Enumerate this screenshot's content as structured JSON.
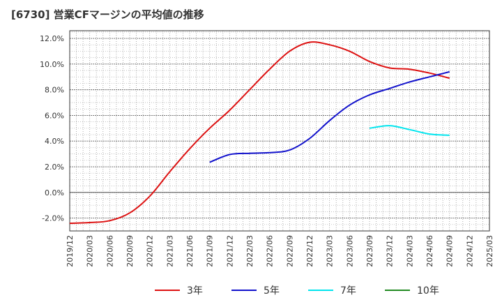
{
  "title": "[6730]  営業CFマージンの平均値の推移",
  "chart_data": {
    "type": "line",
    "title": "[6730]  営業CFマージンの平均値の推移",
    "xlabel": "",
    "ylabel": "",
    "x_ticks": [
      "2019/12",
      "2020/03",
      "2020/06",
      "2020/09",
      "2020/12",
      "2021/03",
      "2021/06",
      "2021/09",
      "2021/12",
      "2022/03",
      "2022/06",
      "2022/09",
      "2022/12",
      "2023/03",
      "2023/06",
      "2023/09",
      "2023/12",
      "2024/03",
      "2024/06",
      "2024/09",
      "2024/12",
      "2025/03"
    ],
    "y_ticks": [
      12,
      10,
      8,
      6,
      4,
      2,
      0,
      -2
    ],
    "y_tick_labels": [
      "12.0%",
      "10.0%",
      "8.0%",
      "6.0%",
      "4.0%",
      "2.0%",
      "0.0%",
      "-2.0%"
    ],
    "ylim": [
      -3.0,
      12.6
    ],
    "grid": true,
    "legend_position": "bottom",
    "series": [
      {
        "name": "3年",
        "color": "#dd1111",
        "points": [
          [
            "2019/12",
            -2.4
          ],
          [
            "2020/03",
            -2.35
          ],
          [
            "2020/06",
            -2.2
          ],
          [
            "2020/09",
            -1.6
          ],
          [
            "2020/12",
            -0.3
          ],
          [
            "2021/03",
            1.6
          ],
          [
            "2021/06",
            3.4
          ],
          [
            "2021/09",
            5.0
          ],
          [
            "2021/12",
            6.4
          ],
          [
            "2022/03",
            8.0
          ],
          [
            "2022/06",
            9.6
          ],
          [
            "2022/09",
            11.0
          ],
          [
            "2022/12",
            11.7
          ],
          [
            "2023/03",
            11.5
          ],
          [
            "2023/06",
            11.0
          ],
          [
            "2023/09",
            10.2
          ],
          [
            "2023/12",
            9.7
          ],
          [
            "2024/03",
            9.6
          ],
          [
            "2024/06",
            9.3
          ],
          [
            "2024/09",
            8.9
          ]
        ]
      },
      {
        "name": "5年",
        "color": "#1111cc",
        "points": [
          [
            "2021/09",
            2.35
          ],
          [
            "2021/12",
            2.95
          ],
          [
            "2022/03",
            3.05
          ],
          [
            "2022/06",
            3.1
          ],
          [
            "2022/09",
            3.3
          ],
          [
            "2022/12",
            4.2
          ],
          [
            "2023/03",
            5.6
          ],
          [
            "2023/06",
            6.8
          ],
          [
            "2023/09",
            7.6
          ],
          [
            "2023/12",
            8.1
          ],
          [
            "2024/03",
            8.6
          ],
          [
            "2024/06",
            9.0
          ],
          [
            "2024/09",
            9.4
          ]
        ]
      },
      {
        "name": "7年",
        "color": "#00e5ee",
        "points": [
          [
            "2023/09",
            5.0
          ],
          [
            "2023/12",
            5.2
          ],
          [
            "2024/03",
            4.9
          ],
          [
            "2024/06",
            4.55
          ],
          [
            "2024/09",
            4.45
          ]
        ]
      },
      {
        "name": "10年",
        "color": "#228b22",
        "points": []
      }
    ]
  }
}
